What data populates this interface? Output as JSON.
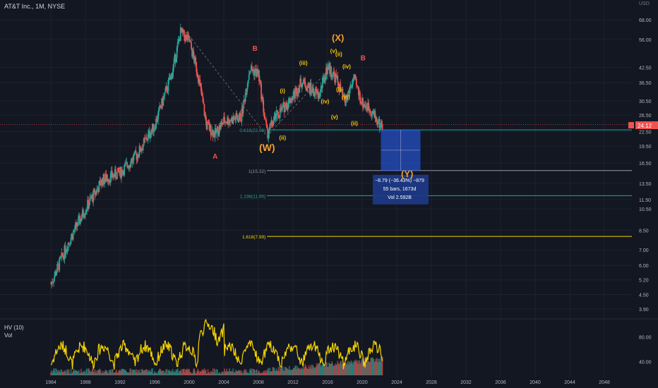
{
  "symbol_title": "AT&T Inc., 1M, NYSE",
  "currency": "USD",
  "last_price": "24.12",
  "price_ticks": [
    "68.00",
    "56.00",
    "42.50",
    "36.50",
    "30.50",
    "26.50",
    "22.50",
    "19.50",
    "16.50",
    "13.50",
    "11.50",
    "10.50",
    "8.50",
    "7.00",
    "6.00",
    "5.20",
    "4.50",
    "3.90"
  ],
  "vol_panel": {
    "title": "HV (10)",
    "sub": "Vol",
    "ticks": [
      "80.00",
      "40.00"
    ]
  },
  "years": [
    "1984",
    "1988",
    "1992",
    "1996",
    "2000",
    "2004",
    "2008",
    "2012",
    "2016",
    "2020",
    "2024",
    "2028",
    "2032",
    "2036",
    "2040",
    "2044",
    "2048"
  ],
  "fib_levels": [
    {
      "label": "0.618(22.90)",
      "color": "#26a69a"
    },
    {
      "label": "1(15.32)",
      "color": "#9598a1"
    },
    {
      "label": "1.236(11.95)",
      "color": "#26a69a"
    },
    {
      "label": "1.618(7.99)",
      "color": "#f5d300"
    }
  ],
  "waves": {
    "primary": [
      {
        "text": "(W)",
        "color": "#f0a030"
      },
      {
        "text": "(X)",
        "color": "#f0a030"
      },
      {
        "text": "(Y)",
        "color": "#f0a030"
      }
    ],
    "abc": [
      {
        "text": "A",
        "color": "#ef5350"
      },
      {
        "text": "B",
        "color": "#ef5350"
      },
      {
        "text": "B",
        "color": "#ef5350"
      }
    ],
    "minor": [
      {
        "text": "(i)",
        "color": "#f5c400"
      },
      {
        "text": "(ii)",
        "color": "#f5c400"
      },
      {
        "text": "(iii)",
        "color": "#f5c400"
      },
      {
        "text": "(iv)",
        "color": "#f5c400"
      },
      {
        "text": "(v)",
        "color": "#f5c400"
      },
      {
        "text": "(i)",
        "color": "#f5c400"
      },
      {
        "text": "(ii)",
        "color": "#f5c400"
      },
      {
        "text": "(iii)",
        "color": "#f5c400"
      },
      {
        "text": "(iv)",
        "color": "#f5c400"
      },
      {
        "text": "(ii)",
        "color": "#f5c400"
      },
      {
        "text": "(v)",
        "color": "#f5c400"
      }
    ]
  },
  "measure_box": {
    "line1": "−8.79 (−36.43%) −879",
    "line2": "55 bars, 1673d",
    "line3": "Vol 2.592B"
  },
  "colors": {
    "bg": "#131722",
    "up": "#26a69a",
    "down": "#ef5350",
    "hv": "#f5d300",
    "grid": "#1e222d",
    "axis_text": "#b2b5be"
  },
  "chart_data": {
    "type": "candlestick",
    "scale": "log",
    "title": "AT&T Inc., 1M, NYSE",
    "ylim": [
      3.5,
      82
    ],
    "approx_close_path": [
      {
        "x": 1984,
        "y": 5.0
      },
      {
        "x": 1986,
        "y": 7.5
      },
      {
        "x": 1988,
        "y": 10.5
      },
      {
        "x": 1990,
        "y": 14
      },
      {
        "x": 1992,
        "y": 15
      },
      {
        "x": 1994,
        "y": 18
      },
      {
        "x": 1996,
        "y": 24
      },
      {
        "x": 1998,
        "y": 40
      },
      {
        "x": 1999,
        "y": 60
      },
      {
        "x": 2000,
        "y": 55
      },
      {
        "x": 2001,
        "y": 40
      },
      {
        "x": 2002,
        "y": 24
      },
      {
        "x": 2003,
        "y": 22
      },
      {
        "x": 2004,
        "y": 25
      },
      {
        "x": 2006,
        "y": 26
      },
      {
        "x": 2007,
        "y": 42
      },
      {
        "x": 2008,
        "y": 40
      },
      {
        "x": 2009,
        "y": 22
      },
      {
        "x": 2010,
        "y": 26
      },
      {
        "x": 2012,
        "y": 32
      },
      {
        "x": 2013,
        "y": 37
      },
      {
        "x": 2015,
        "y": 32
      },
      {
        "x": 2016,
        "y": 43
      },
      {
        "x": 2017,
        "y": 38
      },
      {
        "x": 2018,
        "y": 30
      },
      {
        "x": 2019,
        "y": 38
      },
      {
        "x": 2020,
        "y": 30
      },
      {
        "x": 2021,
        "y": 28
      },
      {
        "x": 2022,
        "y": 24.12
      }
    ],
    "projection": {
      "from": 22.9,
      "to": 15.32,
      "change": "−8.79 (−36.43%)"
    },
    "hv_series_range": [
      20,
      100
    ]
  }
}
